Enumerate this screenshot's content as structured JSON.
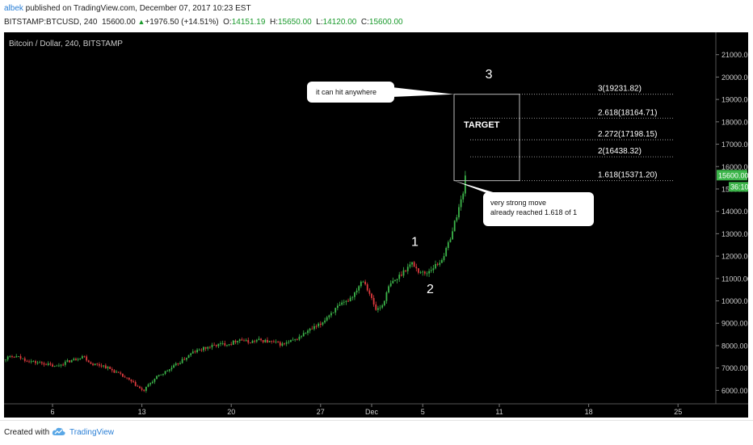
{
  "header": {
    "author": "albek",
    "published_text": " published on TradingView.com, December 07, 2017 10:23 EST",
    "symbol": "BITSTAMP:BTCUSD, 240",
    "change": "+1976.50 (+14.51%)",
    "o_label": "O:",
    "o_value": "14151.19",
    "h_label": "H:",
    "h_value": "15650.00",
    "l_label": "L:",
    "l_value": "14120.00",
    "c_label": "C:",
    "c_value": "15600.00"
  },
  "footer": {
    "created_with": "Created with",
    "brand": "TradingView"
  },
  "colors": {
    "bull": "#3cb54a",
    "bear": "#e03a3e",
    "background": "#000000",
    "axis_text": "#cccccc",
    "fib_line": "#bbbbbb"
  },
  "chart_data": {
    "type": "candlestick",
    "title": "Bitcoin / Dollar, 240, BITSTAMP",
    "ylim": [
      5400,
      22000
    ],
    "y_ticks": [
      21000,
      20000,
      19000,
      18000,
      17000,
      16000,
      15000,
      14000,
      13000,
      12000,
      11000,
      10000,
      9000,
      8000,
      7000,
      6000
    ],
    "y_tick_labels": [
      "21000.00",
      "20000.00",
      "19000.00",
      "18000.00",
      "17000.00",
      "16000.00",
      "15000.00",
      "14000.00",
      "13000.00",
      "12000.00",
      "11000.00",
      "10000.00",
      "9000.00",
      "8000.00",
      "7000.00",
      "6000.00"
    ],
    "x_ticks": [
      {
        "label": "6",
        "day": 6
      },
      {
        "label": "13",
        "day": 13
      },
      {
        "label": "20",
        "day": 20
      },
      {
        "label": "27",
        "day": 27
      },
      {
        "label": "Dec",
        "day": 31
      },
      {
        "label": "5",
        "day": 35
      },
      {
        "label": "11",
        "day": 41
      },
      {
        "label": "18",
        "day": 48
      },
      {
        "label": "25",
        "day": 55
      }
    ],
    "price_path": [
      [
        1,
        7100
      ],
      [
        1.6,
        7300
      ],
      [
        2.4,
        7450
      ],
      [
        3.2,
        7500
      ],
      [
        3.8,
        7380
      ],
      [
        4.6,
        7250
      ],
      [
        5.4,
        7200
      ],
      [
        6.2,
        7050
      ],
      [
        7,
        7250
      ],
      [
        7.8,
        7400
      ],
      [
        8.4,
        7550
      ],
      [
        9,
        7200
      ],
      [
        10,
        7100
      ],
      [
        11,
        6800
      ],
      [
        12,
        6450
      ],
      [
        12.6,
        6200
      ],
      [
        13.1,
        5950
      ],
      [
        13.6,
        6300
      ],
      [
        14.3,
        6650
      ],
      [
        15.2,
        6950
      ],
      [
        16.2,
        7350
      ],
      [
        17,
        7700
      ],
      [
        18,
        7900
      ],
      [
        19,
        8050
      ],
      [
        20,
        8100
      ],
      [
        20.6,
        8300
      ],
      [
        21.3,
        8150
      ],
      [
        22.2,
        8250
      ],
      [
        23.2,
        8150
      ],
      [
        24,
        8050
      ],
      [
        25,
        8250
      ],
      [
        26,
        8650
      ],
      [
        27,
        8950
      ],
      [
        27.6,
        9350
      ],
      [
        28.3,
        9700
      ],
      [
        29,
        9950
      ],
      [
        29.6,
        10300
      ],
      [
        30.3,
        11000
      ],
      [
        30.8,
        10400
      ],
      [
        31.3,
        9600
      ],
      [
        31.8,
        9750
      ],
      [
        32.4,
        10700
      ],
      [
        33,
        11000
      ],
      [
        33.6,
        11400
      ],
      [
        34.2,
        11700
      ],
      [
        34.6,
        11350
      ],
      [
        35.2,
        11200
      ],
      [
        35.8,
        11500
      ],
      [
        36.3,
        11700
      ],
      [
        36.8,
        12200
      ],
      [
        37.3,
        13100
      ],
      [
        37.7,
        13900
      ],
      [
        38,
        14500
      ],
      [
        38.2,
        14800
      ],
      [
        38.4,
        15600
      ]
    ],
    "price_seed": 13,
    "current_price": {
      "value": 15600,
      "label": "15600.00",
      "countdown": "36:10"
    },
    "fib_levels": [
      {
        "ratio": "3",
        "value": 19231.82,
        "label": "3(19231.82)"
      },
      {
        "ratio": "2.618",
        "value": 18164.71,
        "label": "2.618(18164.71)"
      },
      {
        "ratio": "2.272",
        "value": 17198.15,
        "label": "2.272(17198.15)"
      },
      {
        "ratio": "2",
        "value": 16438.32,
        "label": "2(16438.32)"
      },
      {
        "ratio": "1.618",
        "value": 15371.2,
        "label": "1.618(15371.20)"
      }
    ],
    "annotations": {
      "target": "TARGET",
      "callout_top": "it can hit anywhere",
      "callout_bottom_line1": "very strong move",
      "callout_bottom_line2": "already reached 1.618 of 1",
      "wave1": "1",
      "wave2": "2",
      "wave3": "3"
    }
  }
}
